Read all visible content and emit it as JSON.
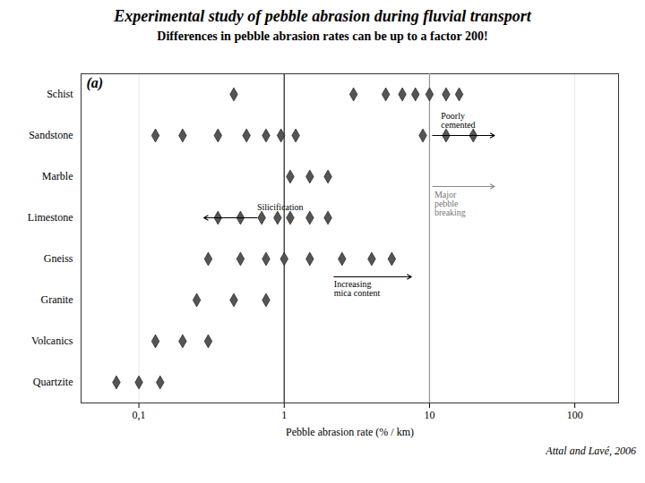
{
  "chart_data": {
    "type": "scatter",
    "title": "Experimental study of pebble abrasion during fluvial transport",
    "subtitle": "Differences in pebble abrasion rates can be up to a factor 200!",
    "citation": "Attal and Lavé, 2006",
    "panel_label": "(a)",
    "xlabel": "Pebble abrasion rate (% / km)",
    "categories": [
      "Schist",
      "Sandstone",
      "Marble",
      "Limestone",
      "Gneiss",
      "Granite",
      "Volcanics",
      "Quartzite"
    ],
    "values": [
      [
        0.45,
        3.0,
        5.0,
        6.5,
        8.0,
        10.0,
        13.0,
        16.0
      ],
      [
        0.13,
        0.2,
        0.35,
        0.55,
        0.75,
        0.95,
        1.2,
        9.0,
        13.0,
        20.0
      ],
      [
        1.1,
        1.5,
        2.0
      ],
      [
        0.35,
        0.5,
        0.7,
        0.9,
        1.1,
        1.5,
        2.0
      ],
      [
        0.3,
        0.5,
        0.75,
        1.0,
        1.5,
        2.5,
        4.0,
        5.5
      ],
      [
        0.25,
        0.45,
        0.75
      ],
      [
        0.13,
        0.2,
        0.3
      ],
      [
        0.07,
        0.1,
        0.14
      ]
    ],
    "color": "#555555",
    "marker": "diamond",
    "log": "x",
    "xlim": [
      0.04,
      200
    ],
    "xticks": [
      {
        "value": 0.1,
        "label": "0,1"
      },
      1,
      10,
      100
    ],
    "grid": true,
    "reference_lines": [
      {
        "x": 1.0,
        "color": "#333333"
      },
      {
        "x": 10.0,
        "color": "#999999"
      }
    ],
    "annotations": [
      {
        "text": "Silicification",
        "y": "Limestone",
        "x": 0.65,
        "arrow_from": 0.65,
        "arrow_to": 0.28
      },
      {
        "text": "Increasing\nmica content",
        "y": "Gneiss",
        "x": 2.2,
        "arrow_from": 2.2,
        "arrow_to": 7.5
      },
      {
        "text": "Poorly\ncemented",
        "y": "Sandstone",
        "x": 12,
        "arrow_from": 10.5,
        "arrow_to": 28
      },
      {
        "text": "Major\npebble\nbreaking",
        "y": "Marble",
        "x": 10.8,
        "arrow_from": 10.5,
        "arrow_to": 28,
        "color": "#777777",
        "arrow_color": "#888888"
      }
    ]
  }
}
